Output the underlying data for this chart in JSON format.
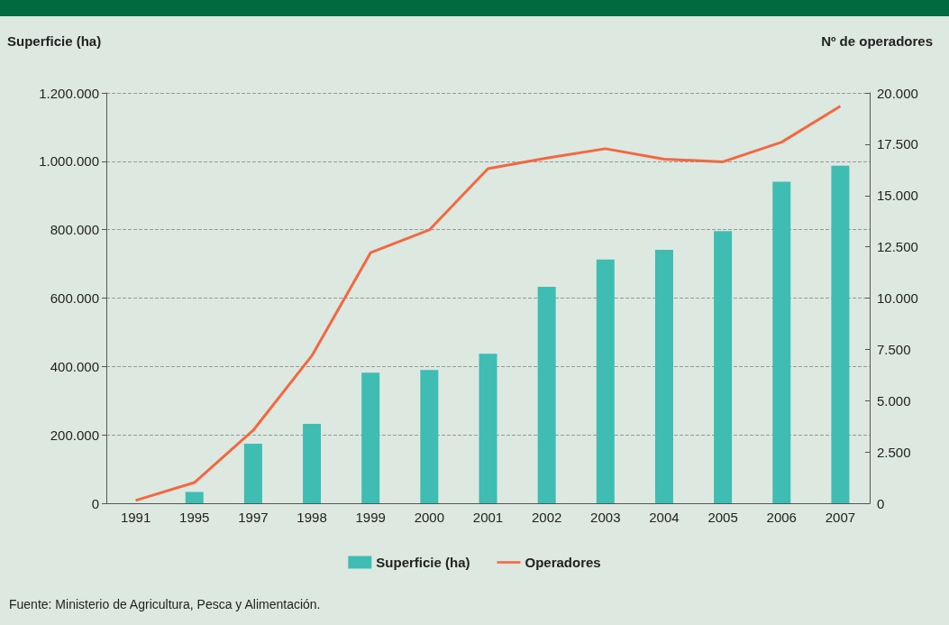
{
  "chart_data": {
    "type": "bar",
    "ylabel": "Superficie (ha)",
    "y2label": "Nº de operadores",
    "categories": [
      "1991",
      "1995",
      "1997",
      "1998",
      "1999",
      "2000",
      "2001",
      "2002",
      "2003",
      "2004",
      "2005",
      "2006",
      "2007"
    ],
    "series": [
      {
        "name": "Superficie (ha)",
        "color": "#3fbdb3",
        "values": [
          0,
          33000,
          174000,
          232000,
          382000,
          390000,
          437000,
          633000,
          713000,
          741000,
          796000,
          940000,
          987000
        ]
      },
      {
        "name": "Operadores",
        "type": "line",
        "axis": "y2",
        "color": "#f26841",
        "values": [
          140,
          1010,
          3550,
          7190,
          12210,
          13320,
          16310,
          16820,
          17280,
          16770,
          16640,
          17600,
          19350
        ]
      }
    ],
    "ylim": [
      0,
      1200000
    ],
    "yticks": [
      0,
      {
        "value": 200000,
        "label": "200.000"
      },
      {
        "value": 400000,
        "label": "400.000"
      },
      {
        "value": 600000,
        "label": "600.000"
      },
      {
        "value": 800000,
        "label": "800.000"
      },
      {
        "value": 1000000,
        "label": "1.000.000"
      },
      {
        "value": 1200000,
        "label": "1.200.000"
      }
    ],
    "y2lim": [
      0,
      20000
    ],
    "y2ticks": [
      0,
      {
        "value": 2500,
        "label": "2.500"
      },
      {
        "value": 5000,
        "label": "5.000"
      },
      {
        "value": 7500,
        "label": "7.500"
      },
      {
        "value": 10000,
        "label": "10.000"
      },
      {
        "value": 12500,
        "label": "12.500"
      },
      {
        "value": 15000,
        "label": "15.000"
      },
      {
        "value": 17500,
        "label": "17.500"
      },
      {
        "value": 20000,
        "label": "20.000"
      }
    ],
    "grid": "y",
    "legend": "bottom",
    "marker": "none",
    "line_style": "solid",
    "annotations": [
      "Fuente: Ministerio de Agricultura, Pesca y Alimentación."
    ]
  }
}
